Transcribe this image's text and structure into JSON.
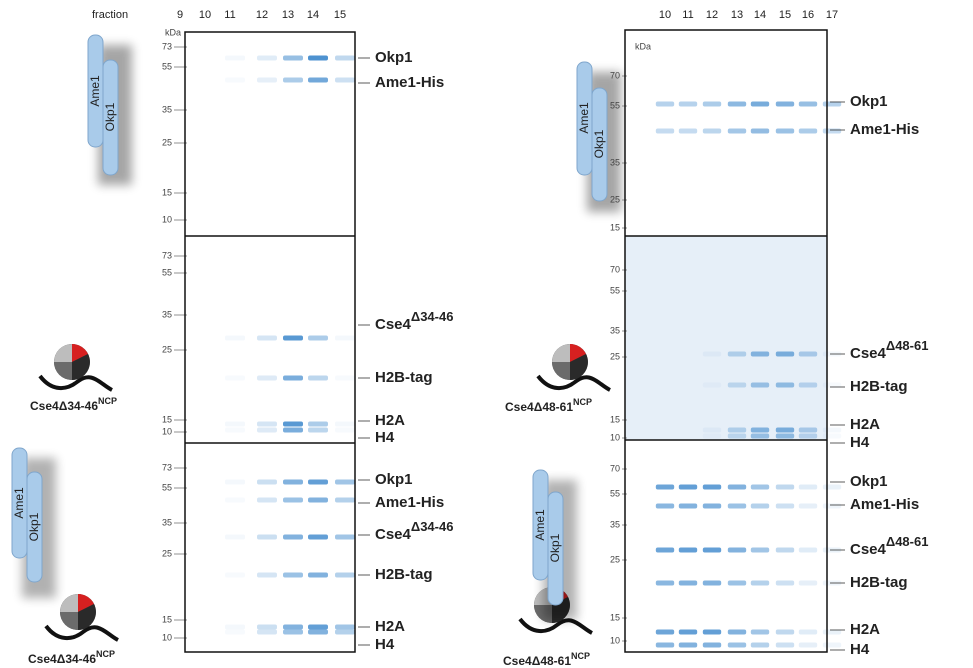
{
  "left": {
    "fraction_label": "fraction",
    "lanes": [
      "9",
      "10",
      "11",
      "12",
      "13",
      "14",
      "15"
    ],
    "gels": [
      {
        "unit": "kDa",
        "markers": [
          "73",
          "55",
          "35",
          "25",
          "15",
          "10"
        ],
        "proteins": [
          {
            "text": "Okp1"
          },
          {
            "text": "Ame1-His"
          }
        ]
      },
      {
        "markers": [
          "73",
          "55",
          "35",
          "25",
          "15",
          "10"
        ],
        "proteins": [
          {
            "text": "Cse4",
            "sup": "Δ34-46"
          },
          {
            "text": "H2B-tag"
          },
          {
            "text": "H2A"
          },
          {
            "text": "H4"
          }
        ]
      },
      {
        "markers": [
          "73",
          "55",
          "35",
          "25",
          "15",
          "10"
        ],
        "proteins": [
          {
            "text": "Okp1"
          },
          {
            "text": "Ame1-His"
          },
          {
            "text": "Cse4",
            "sup": "Δ34-46"
          },
          {
            "text": "H2B-tag"
          },
          {
            "text": "H2A"
          },
          {
            "text": "H4"
          }
        ]
      }
    ],
    "cartoons": {
      "top": [
        "Ame1",
        "Okp1"
      ],
      "middle": {
        "text": "Cse4Δ34-46",
        "sup": "NCP"
      },
      "bottom": {
        "labels": [
          "Ame1",
          "Okp1"
        ],
        "text": "Cse4Δ34-46",
        "sup": "NCP"
      }
    }
  },
  "right": {
    "lanes": [
      "10",
      "11",
      "12",
      "13",
      "14",
      "15",
      "16",
      "17"
    ],
    "gels": [
      {
        "unit": "kDa",
        "markers": [
          "70",
          "55",
          "35",
          "25",
          "15"
        ],
        "proteins": [
          {
            "text": "Okp1"
          },
          {
            "text": "Ame1-His"
          }
        ]
      },
      {
        "markers": [
          "70",
          "55",
          "35",
          "25",
          "15",
          "10"
        ],
        "proteins": [
          {
            "text": "Cse4",
            "sup": "Δ48-61"
          },
          {
            "text": "H2B-tag"
          },
          {
            "text": "H2A"
          },
          {
            "text": "H4"
          }
        ]
      },
      {
        "markers": [
          "70",
          "55",
          "35",
          "25",
          "15",
          "10"
        ],
        "proteins": [
          {
            "text": "Okp1"
          },
          {
            "text": "Ame1-His"
          },
          {
            "text": "Cse4",
            "sup": "Δ48-61"
          },
          {
            "text": "H2B-tag"
          },
          {
            "text": "H2A"
          },
          {
            "text": "H4"
          }
        ]
      }
    ],
    "cartoons": {
      "top": [
        "Ame1",
        "Okp1"
      ],
      "middle": {
        "text": "Cse4Δ48-61",
        "sup": "NCP"
      },
      "bottom": {
        "labels": [
          "Ame1",
          "Okp1"
        ],
        "text": "Cse4Δ48-61",
        "sup": "NCP"
      }
    }
  }
}
